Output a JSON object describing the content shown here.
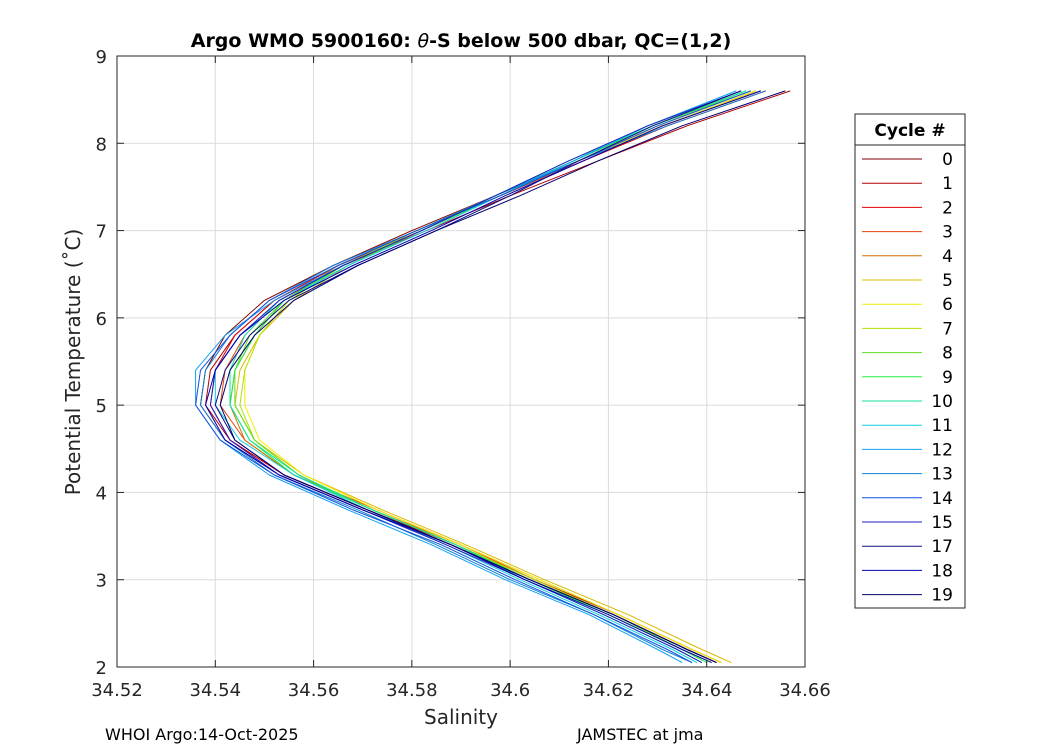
{
  "chart_data": {
    "type": "line",
    "title_prefix": "Argo WMO 5900160: ",
    "title_theta": "θ",
    "title_suffix": "-S below 500 dbar,  QC=(1,2)",
    "xlabel": "Salinity",
    "ylabel": "Potential Temperature (˚C)",
    "xlim": [
      34.52,
      34.66
    ],
    "ylim": [
      2,
      9
    ],
    "xticks": [
      "34.52",
      "34.54",
      "34.56",
      "34.58",
      "34.6",
      "34.62",
      "34.64",
      "34.66"
    ],
    "yticks": [
      "2",
      "3",
      "4",
      "5",
      "6",
      "7",
      "8",
      "9"
    ],
    "grid": true,
    "legend_title": "Cycle #",
    "legend_position": "outside-right",
    "profile_shape": [
      [
        8.6,
        34.648
      ],
      [
        8.2,
        34.629
      ],
      [
        7.8,
        34.613
      ],
      [
        7.4,
        34.597
      ],
      [
        7.0,
        34.581
      ],
      [
        6.6,
        34.565
      ],
      [
        6.2,
        34.553
      ],
      [
        5.8,
        34.546
      ],
      [
        5.4,
        34.542
      ],
      [
        5.0,
        34.541
      ],
      [
        4.6,
        34.545
      ],
      [
        4.2,
        34.555
      ],
      [
        3.8,
        34.571
      ],
      [
        3.4,
        34.588
      ],
      [
        3.0,
        34.603
      ],
      [
        2.6,
        34.619
      ],
      [
        2.2,
        34.633
      ],
      [
        2.05,
        34.638
      ]
    ],
    "series": [
      {
        "name": "0",
        "color": "#800000",
        "offsets": [
          0.003,
          0.002,
          0.001,
          0.0,
          -0.001,
          -0.001,
          -0.003,
          -0.004,
          -0.004,
          -0.004,
          -0.003,
          -0.002,
          -0.001,
          0.0,
          0.001,
          0.002,
          0.003,
          0.004
        ]
      },
      {
        "name": "1",
        "color": "#b00000",
        "offsets": [
          0.009,
          0.007,
          0.005,
          0.003,
          0.002,
          0.001,
          -0.001,
          -0.002,
          -0.003,
          -0.003,
          -0.002,
          -0.001,
          0.0,
          0.001,
          0.002,
          0.003,
          0.004,
          0.005
        ]
      },
      {
        "name": "2",
        "color": "#e00000",
        "offsets": [
          0.004,
          0.003,
          0.002,
          0.001,
          0.001,
          0.0,
          -0.001,
          -0.002,
          -0.002,
          -0.002,
          -0.002,
          -0.001,
          0.0,
          0.0,
          0.001,
          0.002,
          0.003,
          0.004
        ]
      },
      {
        "name": "3",
        "color": "#e84010",
        "offsets": [
          0.002,
          0.002,
          0.002,
          0.001,
          0.001,
          0.001,
          0.0,
          0.0,
          0.0,
          0.0,
          0.001,
          0.001,
          0.002,
          0.002,
          0.002,
          0.002,
          0.003,
          0.004
        ]
      },
      {
        "name": "4",
        "color": "#d07000",
        "offsets": [
          0.002,
          0.002,
          0.001,
          0.001,
          0.0,
          0.0,
          0.001,
          0.002,
          0.002,
          0.002,
          0.001,
          0.001,
          0.001,
          0.002,
          0.003,
          0.003,
          0.004,
          0.005
        ]
      },
      {
        "name": "5",
        "color": "#d8b800",
        "offsets": [
          0.003,
          0.002,
          0.001,
          0.001,
          0.001,
          0.002,
          0.003,
          0.003,
          0.003,
          0.003,
          0.003,
          0.003,
          0.003,
          0.003,
          0.004,
          0.005,
          0.006,
          0.007
        ]
      },
      {
        "name": "6",
        "color": "#f0f000",
        "offsets": [
          0.002,
          0.002,
          0.001,
          0.001,
          0.0,
          0.001,
          0.002,
          0.003,
          0.004,
          0.005,
          0.004,
          0.003,
          0.002,
          0.002,
          0.003,
          0.003,
          0.004,
          0.005
        ]
      },
      {
        "name": "7",
        "color": "#b0e000",
        "offsets": [
          0.001,
          0.001,
          0.001,
          0.0,
          0.0,
          0.001,
          0.002,
          0.003,
          0.004,
          0.004,
          0.003,
          0.002,
          0.001,
          0.001,
          0.002,
          0.002,
          0.003,
          0.004
        ]
      },
      {
        "name": "8",
        "color": "#60e020",
        "offsets": [
          0.001,
          0.0,
          0.0,
          0.0,
          0.001,
          0.002,
          0.001,
          0.001,
          0.002,
          0.003,
          0.003,
          0.002,
          0.001,
          0.001,
          0.001,
          0.002,
          0.002,
          0.003
        ]
      },
      {
        "name": "9",
        "color": "#20f040",
        "offsets": [
          0.0,
          0.0,
          0.0,
          0.001,
          0.001,
          0.001,
          0.001,
          0.002,
          0.002,
          0.002,
          0.002,
          0.001,
          0.001,
          0.001,
          0.001,
          0.001,
          0.002,
          0.002
        ]
      },
      {
        "name": "10",
        "color": "#10e0a0",
        "offsets": [
          0.0,
          0.0,
          -0.001,
          0.0,
          0.001,
          0.001,
          0.0,
          0.0,
          0.001,
          0.002,
          0.002,
          0.002,
          0.001,
          0.001,
          0.0,
          0.0,
          0.001,
          0.001
        ]
      },
      {
        "name": "11",
        "color": "#10d0e0",
        "offsets": [
          -0.001,
          -0.001,
          0.0,
          0.001,
          0.002,
          0.002,
          0.001,
          -0.001,
          -0.002,
          -0.001,
          0.0,
          0.001,
          0.0,
          -0.001,
          -0.001,
          -0.001,
          0.0,
          0.0
        ]
      },
      {
        "name": "12",
        "color": "#10a0f0",
        "offsets": [
          -0.002,
          -0.001,
          0.0,
          0.0,
          0.001,
          0.001,
          -0.001,
          -0.004,
          -0.006,
          -0.005,
          -0.004,
          -0.004,
          -0.004,
          -0.004,
          -0.004,
          -0.003,
          -0.003,
          -0.003
        ]
      },
      {
        "name": "13",
        "color": "#1080d0",
        "offsets": [
          0.004,
          0.003,
          0.001,
          0.0,
          0.0,
          -0.001,
          -0.002,
          -0.003,
          -0.004,
          -0.004,
          -0.003,
          -0.003,
          -0.002,
          -0.003,
          -0.003,
          -0.002,
          -0.002,
          -0.001
        ]
      },
      {
        "name": "14",
        "color": "#1050e0",
        "offsets": [
          0.001,
          0.001,
          0.001,
          0.001,
          0.0,
          0.0,
          -0.002,
          -0.003,
          -0.005,
          -0.005,
          -0.004,
          -0.003,
          -0.003,
          -0.002,
          -0.002,
          -0.002,
          -0.001,
          -0.001
        ]
      },
      {
        "name": "15",
        "color": "#2020c0",
        "offsets": [
          -0.001,
          -0.001,
          -0.001,
          0.0,
          0.001,
          0.001,
          0.0,
          -0.001,
          -0.002,
          -0.002,
          -0.002,
          -0.002,
          -0.001,
          -0.001,
          0.0,
          0.0,
          0.001,
          0.001
        ]
      },
      {
        "name": "17",
        "color": "#101080",
        "offsets": [
          -0.001,
          0.0,
          0.001,
          0.003,
          0.004,
          0.004,
          0.002,
          0.001,
          0.0,
          -0.001,
          -0.001,
          -0.001,
          0.0,
          0.0,
          0.001,
          0.002,
          0.003,
          0.004
        ]
      },
      {
        "name": "18",
        "color": "#0000b0",
        "offsets": [
          0.003,
          0.002,
          0.002,
          0.002,
          0.003,
          0.003,
          0.001,
          -0.001,
          -0.002,
          -0.003,
          -0.003,
          -0.002,
          -0.001,
          0.0,
          0.0,
          0.001,
          0.002,
          0.003
        ]
      },
      {
        "name": "19",
        "color": "#000070",
        "offsets": [
          0.008,
          0.006,
          0.005,
          0.005,
          0.004,
          0.004,
          0.003,
          0.002,
          0.001,
          0.0,
          -0.001,
          -0.001,
          0.0,
          0.0,
          0.001,
          0.002,
          0.003,
          0.004
        ]
      }
    ]
  },
  "footer": {
    "left": "WHOI Argo:14-Oct-2025",
    "right": "JAMSTEC at jma"
  }
}
